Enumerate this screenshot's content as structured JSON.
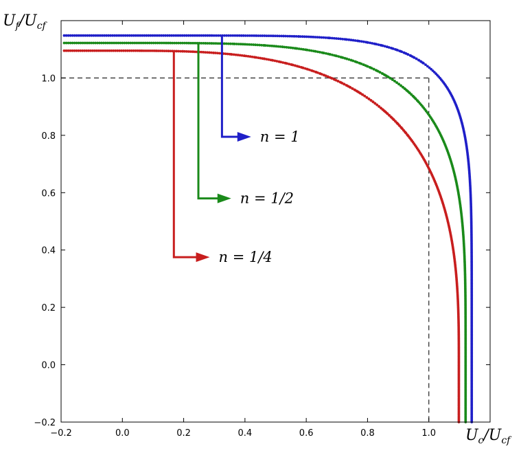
{
  "chart_data": {
    "type": "scatter",
    "title": "",
    "xlabel": "U_c/U_cf",
    "ylabel": "U_f/U_cf",
    "xlim": [
      -0.2,
      1.2
    ],
    "ylim": [
      -0.2,
      1.2
    ],
    "x_ticks": [
      "−0.2",
      "0.0",
      "0.2",
      "0.4",
      "0.6",
      "0.8",
      "1.0"
    ],
    "y_ticks": [
      "−0.2",
      "0.0",
      "0.2",
      "0.4",
      "0.6",
      "0.8",
      "1.0"
    ],
    "x_tick_values": [
      -0.2,
      0.0,
      0.2,
      0.4,
      0.6,
      0.8,
      1.0
    ],
    "y_tick_values": [
      -0.2,
      0.0,
      0.2,
      0.4,
      0.6,
      0.8,
      1.0
    ],
    "grid": false,
    "reference_lines": {
      "x": 1.0,
      "y": 1.0,
      "style": "dashed",
      "color": "#333333"
    },
    "series": [
      {
        "name": "n = 1",
        "color": "#1f1fc8",
        "p": 1.0,
        "x_at_bottom": 1.14,
        "y_at_left": 1.148
      },
      {
        "name": "n = 1/2",
        "color": "#1a8a1a",
        "p": 0.5,
        "x_at_bottom": 1.12,
        "y_at_left": 1.122
      },
      {
        "name": "n = 1/4",
        "color": "#c81e1e",
        "p": 0.25,
        "x_at_bottom": 1.098,
        "y_at_left": 1.095
      }
    ],
    "annotations": [
      {
        "text": "n = 1",
        "color": "#1f1fc8",
        "from": [
          0.325,
          1.148
        ],
        "corner": [
          0.325,
          0.795
        ],
        "to": [
          0.42,
          0.795
        ]
      },
      {
        "text": "n = 1/2",
        "color": "#1a8a1a",
        "from": [
          0.248,
          1.122
        ],
        "corner": [
          0.248,
          0.58
        ],
        "to": [
          0.355,
          0.58
        ]
      },
      {
        "text": "n = 1/4",
        "color": "#c81e1e",
        "from": [
          0.168,
          1.095
        ],
        "corner": [
          0.168,
          0.375
        ],
        "to": [
          0.285,
          0.375
        ]
      }
    ]
  }
}
